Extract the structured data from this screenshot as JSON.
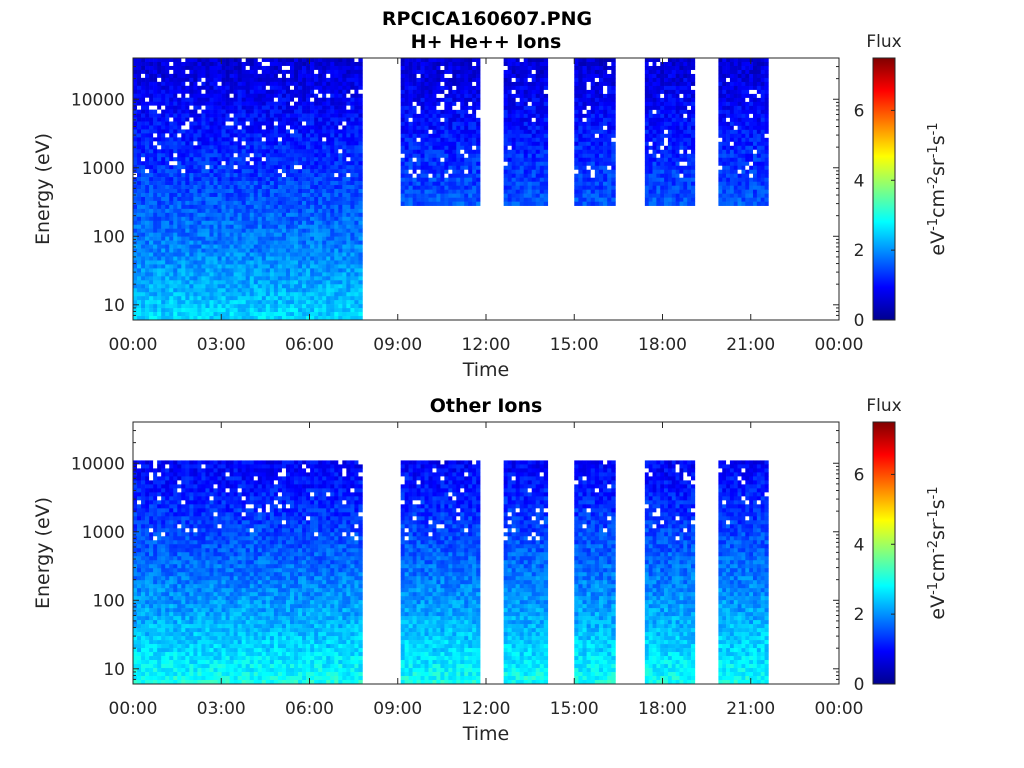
{
  "figure": {
    "title_line1": "RPCICA160607.PNG"
  },
  "colormap": [
    "#00008f",
    "#0000ff",
    "#0080ff",
    "#00ffff",
    "#80ff80",
    "#ffff00",
    "#ff8000",
    "#ff0000",
    "#800000"
  ],
  "chart_data": [
    {
      "type": "heatmap",
      "title": "H+ He++ Ions",
      "xlabel": "Time",
      "ylabel": "Energy (eV)",
      "x_ticks": [
        "00:00",
        "03:00",
        "06:00",
        "09:00",
        "12:00",
        "15:00",
        "18:00",
        "21:00",
        "00:00"
      ],
      "xlim_hours": [
        0,
        24
      ],
      "y_scale": "log",
      "ylim": [
        6,
        40000
      ],
      "y_ticks": [
        {
          "value": 10,
          "label": "10"
        },
        {
          "value": 100,
          "label": "100"
        },
        {
          "value": 1000,
          "label": "1000"
        },
        {
          "value": 10000,
          "label": "10000"
        }
      ],
      "colorbar": {
        "title": "Flux",
        "range": [
          0,
          7.5
        ],
        "ticks": [
          {
            "value": 0,
            "label": "0"
          },
          {
            "value": 2,
            "label": "2"
          },
          {
            "value": 4,
            "label": "4"
          },
          {
            "value": 6,
            "label": "6"
          }
        ],
        "units_base": [
          "eV",
          "cm",
          "sr",
          "s"
        ],
        "units_exp": [
          "-1",
          "-2",
          "-1",
          "-1"
        ]
      },
      "data_intervals_hours": [
        [
          0.0,
          7.8
        ],
        [
          9.1,
          11.8
        ],
        [
          12.6,
          14.1
        ],
        [
          15.0,
          16.4
        ],
        [
          17.4,
          19.1
        ],
        [
          19.9,
          21.6
        ]
      ],
      "energy_range_by_interval_eV": [
        [
          6,
          40000
        ],
        [
          280,
          40000
        ],
        [
          280,
          40000
        ],
        [
          280,
          40000
        ],
        [
          280,
          40000
        ],
        [
          280,
          40000
        ]
      ],
      "flux_low_energy": 2.6,
      "flux_high_energy": 0.6,
      "grid": false
    },
    {
      "type": "heatmap",
      "title": "Other Ions",
      "xlabel": "Time",
      "ylabel": "Energy (eV)",
      "x_ticks": [
        "00:00",
        "03:00",
        "06:00",
        "09:00",
        "12:00",
        "15:00",
        "18:00",
        "21:00",
        "00:00"
      ],
      "xlim_hours": [
        0,
        24
      ],
      "y_scale": "log",
      "ylim": [
        6,
        40000
      ],
      "y_ticks": [
        {
          "value": 10,
          "label": "10"
        },
        {
          "value": 100,
          "label": "100"
        },
        {
          "value": 1000,
          "label": "1000"
        },
        {
          "value": 10000,
          "label": "10000"
        }
      ],
      "colorbar": {
        "title": "Flux",
        "range": [
          0,
          7.5
        ],
        "ticks": [
          {
            "value": 0,
            "label": "0"
          },
          {
            "value": 2,
            "label": "2"
          },
          {
            "value": 4,
            "label": "4"
          },
          {
            "value": 6,
            "label": "6"
          }
        ],
        "units_base": [
          "eV",
          "cm",
          "sr",
          "s"
        ],
        "units_exp": [
          "-1",
          "-2",
          "-1",
          "-1"
        ]
      },
      "data_intervals_hours": [
        [
          0.0,
          7.8
        ],
        [
          9.1,
          11.8
        ],
        [
          12.6,
          14.1
        ],
        [
          15.0,
          16.4
        ],
        [
          17.4,
          19.1
        ],
        [
          19.9,
          21.6
        ]
      ],
      "energy_range_by_interval_eV": [
        [
          6,
          11000
        ],
        [
          6,
          11000
        ],
        [
          6,
          11000
        ],
        [
          6,
          11000
        ],
        [
          6,
          11000
        ],
        [
          6,
          11000
        ]
      ],
      "flux_low_energy": 3.0,
      "flux_high_energy": 0.6,
      "grid": false
    }
  ]
}
